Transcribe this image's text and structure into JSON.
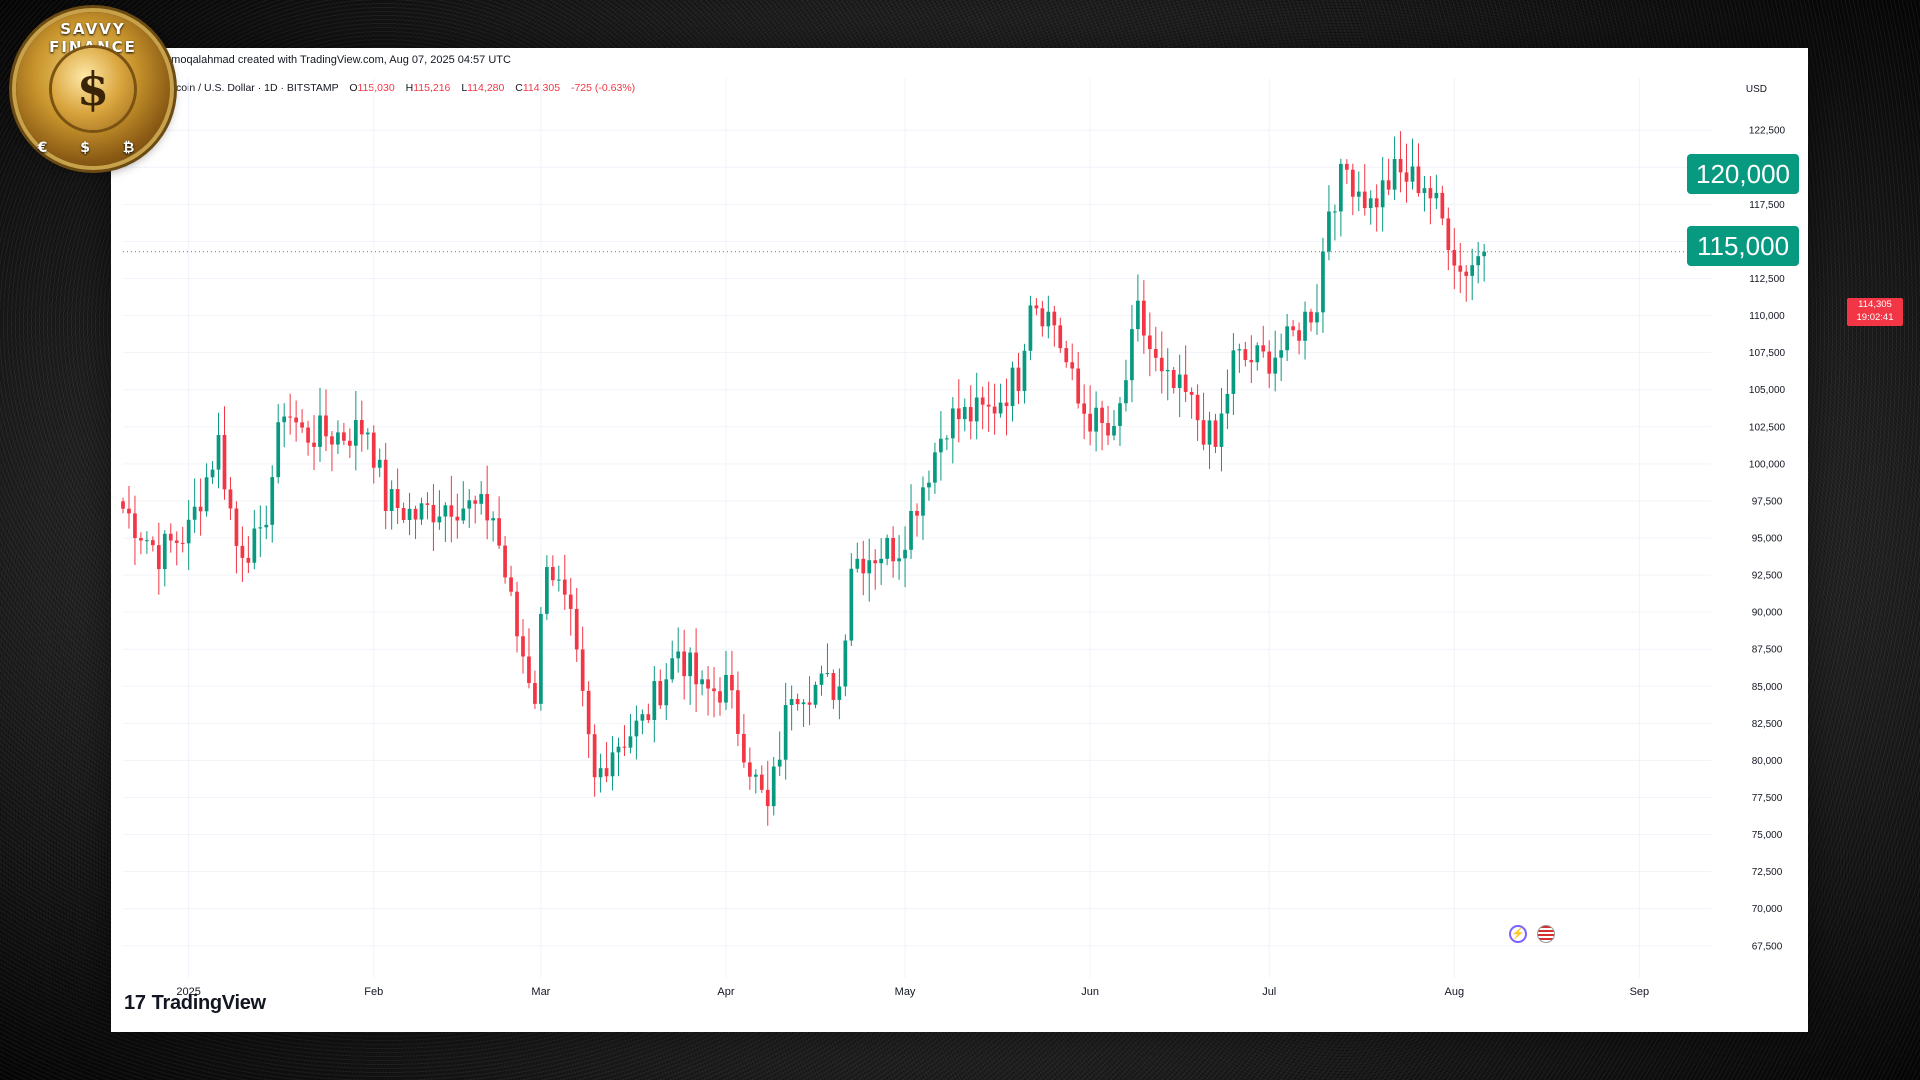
{
  "attribution": "...moqalahmad created with TradingView.com, Aug 07, 2025 04:57 UTC",
  "legend": {
    "symbol": "...itcoin / U.S. Dollar · 1D · BITSTAMP",
    "open_label": "O",
    "open": "115,030",
    "high_label": "H",
    "high": "115,216",
    "low_label": "L",
    "low": "114,280",
    "close_label": "C",
    "close": "114,305",
    "change": "-725 (-0.63%)"
  },
  "currency": "USD",
  "brand": "TradingView",
  "logo": {
    "text": "SAVVY FINANCE",
    "center": "$",
    "symbols": "€ $ ₿"
  },
  "badges": [
    {
      "label": "120,000"
    },
    {
      "label": "115,000"
    }
  ],
  "price_tag": {
    "price": "114,305",
    "countdown": "19:02:41"
  },
  "icon_names": [
    "lightning-event-icon",
    "us-flag-icon"
  ],
  "colors": {
    "up": "#089981",
    "down": "#f23645",
    "badge": "#089981"
  },
  "chart_data": {
    "type": "candlestick",
    "title": "",
    "ylabel": "",
    "ylim": [
      66000,
      124000
    ],
    "y_ticks": [
      "67,500",
      "70,000",
      "72,500",
      "75,000",
      "77,500",
      "80,000",
      "82,500",
      "85,000",
      "87,500",
      "90,000",
      "92,500",
      "95,000",
      "97,500",
      "100,000",
      "102,500",
      "105,000",
      "107,500",
      "110,000",
      "112,500",
      "115,000",
      "117,500",
      "120,000",
      "122,500"
    ],
    "x_ticks": [
      "2025",
      "Feb",
      "Mar",
      "Apr",
      "May",
      "Jun",
      "Jul",
      "Aug",
      "Sep"
    ],
    "x_start": "2024-12-21",
    "x_end": "2025-09-13",
    "last_price": 114305,
    "anchors": [
      [
        "2024-12-21",
        97000
      ],
      [
        "2024-12-27",
        94000
      ],
      [
        "2025-01-01",
        95500
      ],
      [
        "2025-01-06",
        101500
      ],
      [
        "2025-01-09",
        94500
      ],
      [
        "2025-01-13",
        94500
      ],
      [
        "2025-01-17",
        104000
      ],
      [
        "2025-01-20",
        102000
      ],
      [
        "2025-01-27",
        102000
      ],
      [
        "2025-01-31",
        102500
      ],
      [
        "2025-02-03",
        97500
      ],
      [
        "2025-02-08",
        96500
      ],
      [
        "2025-02-14",
        97500
      ],
      [
        "2025-02-21",
        96500
      ],
      [
        "2025-02-25",
        88500
      ],
      [
        "2025-02-28",
        84500
      ],
      [
        "2025-03-02",
        94000
      ],
      [
        "2025-03-06",
        89000
      ],
      [
        "2025-03-10",
        78500
      ],
      [
        "2025-03-13",
        81000
      ],
      [
        "2025-03-18",
        82500
      ],
      [
        "2025-03-24",
        87500
      ],
      [
        "2025-03-28",
        84500
      ],
      [
        "2025-04-01",
        85000
      ],
      [
        "2025-04-06",
        78500
      ],
      [
        "2025-04-08",
        76500
      ],
      [
        "2025-04-12",
        85000
      ],
      [
        "2025-04-20",
        85000
      ],
      [
        "2025-04-22",
        93500
      ],
      [
        "2025-04-30",
        94500
      ],
      [
        "2025-05-02",
        96500
      ],
      [
        "2025-05-08",
        103000
      ],
      [
        "2025-05-15",
        103500
      ],
      [
        "2025-05-20",
        106000
      ],
      [
        "2025-05-22",
        111500
      ],
      [
        "2025-05-26",
        109500
      ],
      [
        "2025-05-30",
        104000
      ],
      [
        "2025-06-05",
        101500
      ],
      [
        "2025-06-09",
        110000
      ],
      [
        "2025-06-13",
        105500
      ],
      [
        "2025-06-17",
        104500
      ],
      [
        "2025-06-22",
        101000
      ],
      [
        "2025-06-25",
        107000
      ],
      [
        "2025-06-30",
        107000
      ],
      [
        "2025-07-04",
        108000
      ],
      [
        "2025-07-09",
        111000
      ],
      [
        "2025-07-11",
        117500
      ],
      [
        "2025-07-14",
        119800
      ],
      [
        "2025-07-18",
        117500
      ],
      [
        "2025-07-22",
        119500
      ],
      [
        "2025-07-27",
        119000
      ],
      [
        "2025-07-31",
        115500
      ],
      [
        "2025-08-02",
        113000
      ],
      [
        "2025-08-06",
        114305
      ]
    ]
  }
}
